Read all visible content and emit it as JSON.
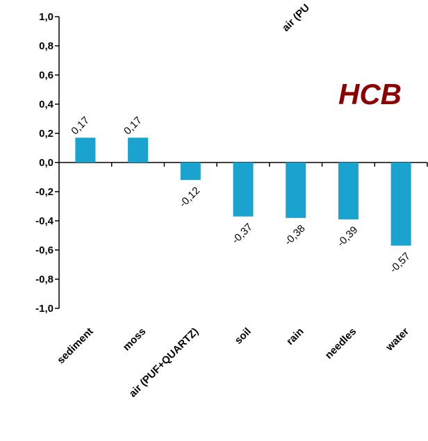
{
  "chart_data": {
    "type": "bar",
    "title": "HCB",
    "xlabel": "",
    "ylabel": "",
    "categories": [
      "sediment",
      "moss",
      "air (PUF+QUARTZ)",
      "soil",
      "rain",
      "needles",
      "water"
    ],
    "values": [
      0.17,
      0.17,
      -0.12,
      -0.37,
      -0.38,
      -0.39,
      -0.57
    ],
    "data_labels": [
      "0,17",
      "0,17",
      "-0,12",
      "-0,37",
      "-0,38",
      "-0,39",
      "-0,57"
    ],
    "ylim": [
      -1.0,
      1.0
    ],
    "yticks": [
      1.0,
      0.8,
      0.6,
      0.4,
      0.2,
      0.0,
      -0.2,
      -0.4,
      -0.6,
      -0.8,
      -1.0
    ],
    "ytick_labels": [
      "1,0",
      "0,8",
      "0,6",
      "0,4",
      "0,2",
      "0,0",
      "-0,2",
      "-0,4",
      "-0,6",
      "-0,8",
      "-1,0"
    ],
    "stray_label": "air (PU",
    "grid": false,
    "legend": "none",
    "colors": {
      "bar": "#1aa3cf",
      "title": "#8b0000",
      "axis": "#000000"
    }
  }
}
